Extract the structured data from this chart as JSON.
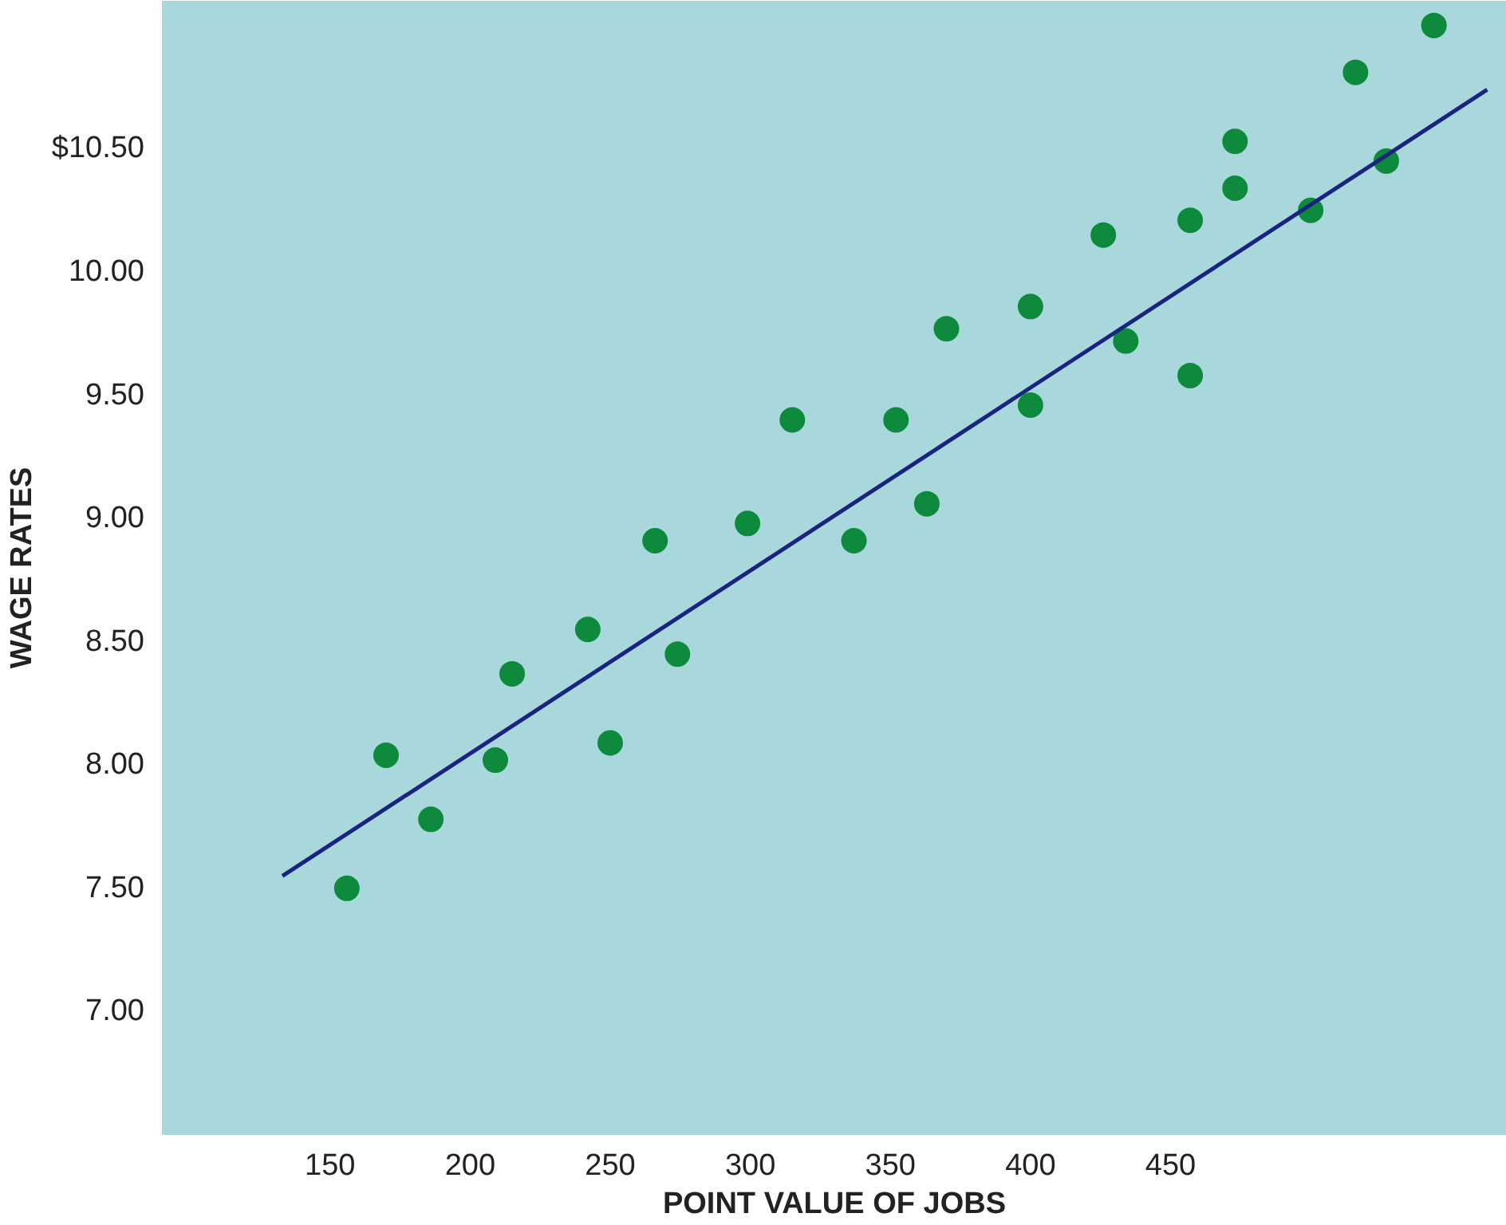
{
  "chart_data": {
    "type": "scatter",
    "xlabel": "POINT VALUE OF JOBS",
    "ylabel": "WAGE RATES",
    "xlim": [
      90,
      570
    ],
    "ylim": [
      6.5,
      11.1
    ],
    "xticks": [
      150,
      200,
      250,
      300,
      350,
      400,
      450
    ],
    "yticks": [
      {
        "value": 7.0,
        "label": "7.00"
      },
      {
        "value": 7.5,
        "label": "7.50"
      },
      {
        "value": 8.0,
        "label": "8.00"
      },
      {
        "value": 8.5,
        "label": "8.50"
      },
      {
        "value": 9.0,
        "label": "9.00"
      },
      {
        "value": 9.5,
        "label": "9.50"
      },
      {
        "value": 10.0,
        "label": "10.00"
      },
      {
        "value": 10.5,
        "label": "$10.50"
      }
    ],
    "grid": false,
    "marker": "circle",
    "series": [
      {
        "color": "#0d8a3c",
        "x": [
          156,
          170,
          186,
          209,
          215,
          242,
          250,
          266,
          274,
          299,
          315,
          337,
          352,
          363,
          370,
          400,
          400,
          426,
          434,
          457,
          457,
          473,
          473,
          500,
          516,
          527,
          544
        ],
        "values": [
          7.5,
          8.04,
          7.78,
          8.02,
          8.37,
          8.55,
          8.09,
          8.91,
          8.45,
          8.98,
          9.4,
          8.91,
          9.4,
          9.06,
          9.77,
          9.86,
          9.46,
          10.15,
          9.72,
          10.21,
          9.58,
          10.53,
          10.34,
          10.25,
          10.81,
          10.45,
          11.0
        ]
      },
      {
        "type": "line",
        "marker": "none",
        "color": "#1a237e",
        "x": [
          133,
          563
        ],
        "values": [
          7.55,
          10.74
        ]
      }
    ]
  }
}
